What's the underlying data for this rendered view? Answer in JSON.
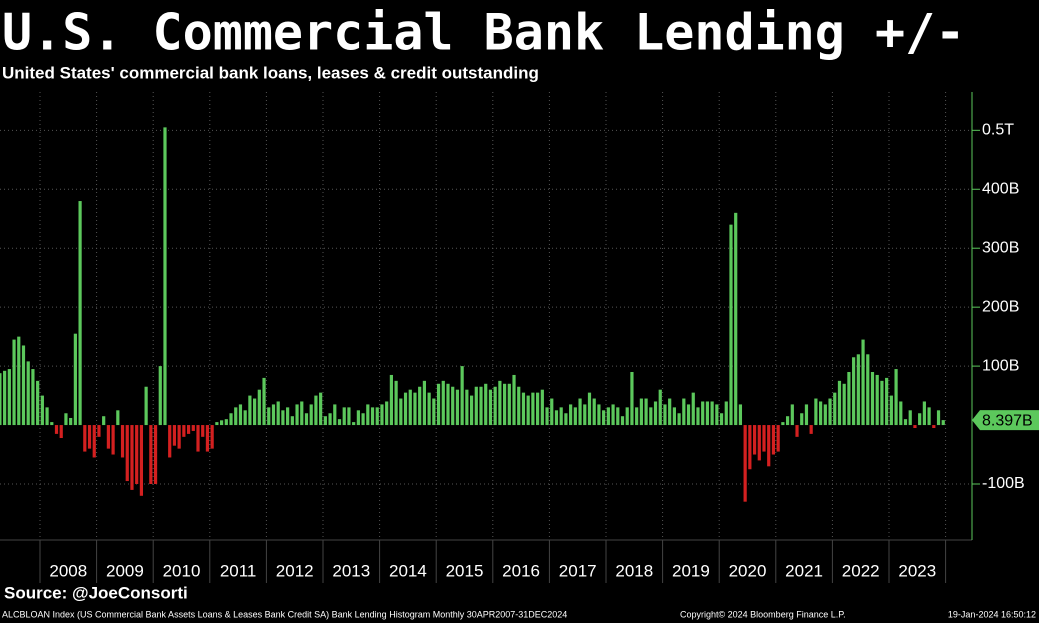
{
  "chart_data": {
    "type": "bar",
    "title": "U.S. Commercial Bank Lending +/-",
    "subtitle": "United States' commercial bank loans, leases & credit outstanding",
    "years": [
      "2008",
      "2009",
      "2010",
      "2011",
      "2012",
      "2013",
      "2014",
      "2015",
      "2016",
      "2017",
      "2018",
      "2019",
      "2020",
      "2021",
      "2022",
      "2023"
    ],
    "values": [
      88,
      92,
      95,
      145,
      150,
      135,
      108,
      95,
      75,
      50,
      30,
      5,
      -15,
      -22,
      20,
      12,
      155,
      380,
      -45,
      -40,
      -55,
      -20,
      15,
      -40,
      -50,
      25,
      -55,
      -95,
      -110,
      -100,
      -120,
      65,
      -100,
      -100,
      100,
      505,
      -55,
      -35,
      -40,
      -20,
      -15,
      -10,
      -45,
      -20,
      -45,
      -40,
      5,
      8,
      10,
      20,
      30,
      35,
      25,
      50,
      45,
      60,
      80,
      30,
      35,
      40,
      25,
      30,
      15,
      35,
      40,
      20,
      35,
      50,
      55,
      15,
      20,
      35,
      10,
      30,
      30,
      5,
      25,
      20,
      35,
      30,
      30,
      35,
      40,
      85,
      75,
      45,
      55,
      60,
      55,
      65,
      75,
      55,
      45,
      70,
      75,
      70,
      65,
      60,
      100,
      60,
      50,
      65,
      65,
      70,
      60,
      65,
      75,
      70,
      70,
      85,
      65,
      55,
      50,
      55,
      55,
      60,
      30,
      45,
      25,
      30,
      20,
      35,
      30,
      45,
      35,
      55,
      45,
      35,
      25,
      30,
      35,
      30,
      15,
      30,
      90,
      30,
      45,
      45,
      30,
      40,
      60,
      35,
      45,
      30,
      20,
      45,
      35,
      55,
      30,
      40,
      40,
      40,
      35,
      20,
      40,
      340,
      360,
      35,
      -130,
      -75,
      -50,
      -60,
      -45,
      -70,
      -50,
      -45,
      5,
      15,
      35,
      -20,
      20,
      35,
      -15,
      45,
      40,
      35,
      45,
      55,
      75,
      70,
      90,
      115,
      120,
      145,
      120,
      90,
      85,
      75,
      80,
      50,
      95,
      40,
      10,
      25,
      -5,
      20,
      40,
      30,
      -5,
      25,
      8.397
    ],
    "current_value_label": "8.397B",
    "positive_color": "#5cc85c",
    "negative_color": "#d42020",
    "ylim": [
      -195,
      565
    ],
    "yticks": [
      {
        "value": -100,
        "label": "-100B"
      },
      {
        "value": 100,
        "label": "100B"
      },
      {
        "value": 200,
        "label": "200B"
      },
      {
        "value": 300,
        "label": "300B"
      },
      {
        "value": 400,
        "label": "400B"
      },
      {
        "value": 500,
        "label": "0.5T"
      }
    ],
    "grid": true,
    "source": "Source: @JoeConsorti",
    "footer": "ALCBLOAN Index (US Commercial Bank Assets Loans & Leases Bank Credit SA) Bank Lending Histogram  Monthly 30APR2007-31DEC2024",
    "copyright": "Copyright© 2024 Bloomberg Finance L.P.",
    "timestamp": "19-Jan-2024 16:50:12"
  }
}
